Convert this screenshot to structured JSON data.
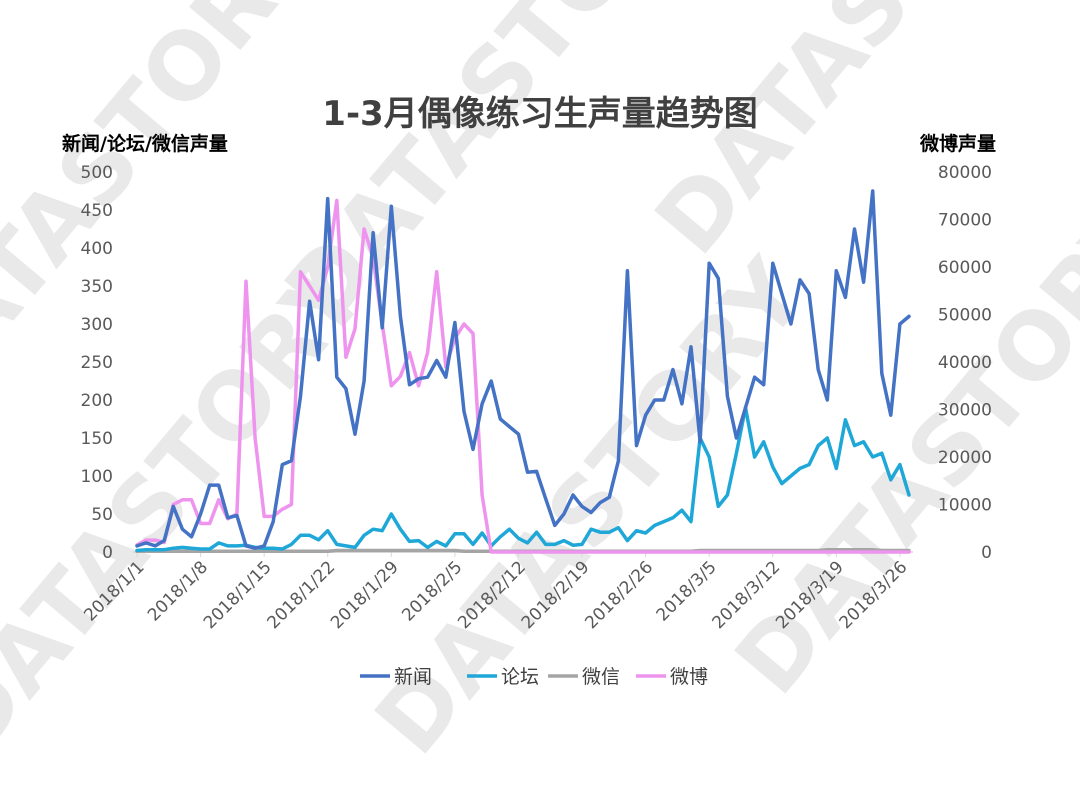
{
  "watermark": "DATASTORY",
  "chart_data": {
    "type": "line",
    "title": "1-3月偶像练习生声量趋势图",
    "ylabel_left": "新闻/论坛/微信声量",
    "ylabel_right": "微博声量",
    "ylim_left": [
      0,
      500
    ],
    "ylim_right": [
      0,
      80000
    ],
    "yticks_left": [
      "0",
      "50",
      "100",
      "150",
      "200",
      "250",
      "300",
      "350",
      "400",
      "450",
      "500"
    ],
    "yticks_right": [
      "0",
      "10000",
      "20000",
      "30000",
      "40000",
      "50000",
      "60000",
      "70000",
      "80000"
    ],
    "x_start": "2018/1/1",
    "x_end": "2018/3/28",
    "x_tick_labels": [
      "2018/1/1",
      "2018/1/8",
      "2018/1/15",
      "2018/1/22",
      "2018/1/29",
      "2018/2/5",
      "2018/2/12",
      "2018/2/19",
      "2018/2/26",
      "2018/3/5",
      "2018/3/12",
      "2018/3/19",
      "2018/3/26"
    ],
    "legend_position": "bottom",
    "colors": {
      "新闻": "#4472c4",
      "论坛": "#1fa7d8",
      "微信": "#a5a5a5",
      "微博": "#ee93ee"
    },
    "series": [
      {
        "name": "新闻",
        "axis": "left",
        "values": [
          8,
          12,
          8,
          15,
          60,
          30,
          20,
          50,
          88,
          88,
          45,
          48,
          8,
          5,
          8,
          40,
          115,
          120,
          205,
          330,
          253,
          465,
          230,
          215,
          155,
          225,
          420,
          295,
          455,
          310,
          220,
          228,
          230,
          252,
          230,
          302,
          185,
          135,
          195,
          225,
          175,
          165,
          155,
          105,
          106,
          70,
          35,
          50,
          75,
          60,
          52,
          65,
          72,
          120,
          370,
          140,
          180,
          200,
          200,
          240,
          195,
          270,
          145,
          380,
          360,
          205,
          150,
          190,
          230,
          220,
          380,
          340,
          300,
          358,
          340,
          240,
          200,
          370,
          335,
          425,
          355,
          475,
          235,
          180,
          300,
          310
        ],
        "values_short": []
      },
      {
        "name": "论坛",
        "axis": "left",
        "values": [
          2,
          3,
          3,
          3,
          5,
          6,
          5,
          4,
          4,
          12,
          8,
          8,
          9,
          6,
          5,
          5,
          4,
          10,
          22,
          22,
          16,
          28,
          10,
          8,
          6,
          22,
          30,
          28,
          50,
          30,
          14,
          15,
          6,
          14,
          8,
          24,
          24,
          10,
          25,
          8,
          20,
          30,
          18,
          12,
          26,
          10,
          10,
          15,
          9,
          10,
          30,
          26,
          26,
          32,
          15,
          28,
          25,
          35,
          40,
          45,
          55,
          40,
          150,
          125,
          60,
          75,
          130,
          190,
          125,
          145,
          112,
          90,
          100,
          110,
          115,
          140,
          150,
          110,
          174,
          140,
          145,
          125,
          130,
          95,
          115,
          75
        ],
        "values_short": []
      },
      {
        "name": "微信",
        "axis": "left",
        "values": [
          1,
          1,
          1,
          1,
          1,
          1,
          1,
          1,
          1,
          1,
          1,
          1,
          1,
          1,
          1,
          1,
          1,
          1,
          1,
          1,
          1,
          1,
          2,
          2,
          2,
          2,
          2,
          2,
          2,
          2,
          2,
          2,
          2,
          2,
          2,
          2,
          1,
          1,
          1,
          1,
          1,
          1,
          1,
          1,
          1,
          1,
          1,
          1,
          1,
          1,
          1,
          1,
          1,
          1,
          1,
          1,
          1,
          1,
          1,
          1,
          1,
          1,
          2,
          2,
          2,
          2,
          2,
          2,
          2,
          2,
          2,
          2,
          2,
          2,
          2,
          2,
          3,
          3,
          3,
          3,
          3,
          3,
          2,
          2,
          2,
          2
        ],
        "values_short": []
      },
      {
        "name": "微博",
        "axis": "right",
        "values": [
          1500,
          2500,
          2500,
          2000,
          10000,
          11000,
          11000,
          6000,
          6000,
          11000,
          7000,
          8000,
          57000,
          24000,
          7500,
          7500,
          9000,
          10000,
          59000,
          56000,
          53000,
          60000,
          74000,
          41000,
          47000,
          68000,
          62000,
          48000,
          35000,
          37000,
          42000,
          35000,
          42000,
          59000,
          39000,
          45000,
          48000,
          46000,
          12000,
          0,
          0,
          0,
          0,
          0,
          0,
          0,
          0,
          0,
          0,
          0,
          0,
          0,
          0,
          0,
          0,
          0,
          0,
          0,
          0,
          0,
          0,
          0,
          0,
          0,
          0,
          0,
          0,
          0,
          0,
          0,
          0,
          0,
          0,
          0,
          0,
          0,
          0,
          0,
          0,
          0,
          0,
          0,
          0,
          0,
          0,
          0
        ],
        "values_short": []
      }
    ]
  }
}
